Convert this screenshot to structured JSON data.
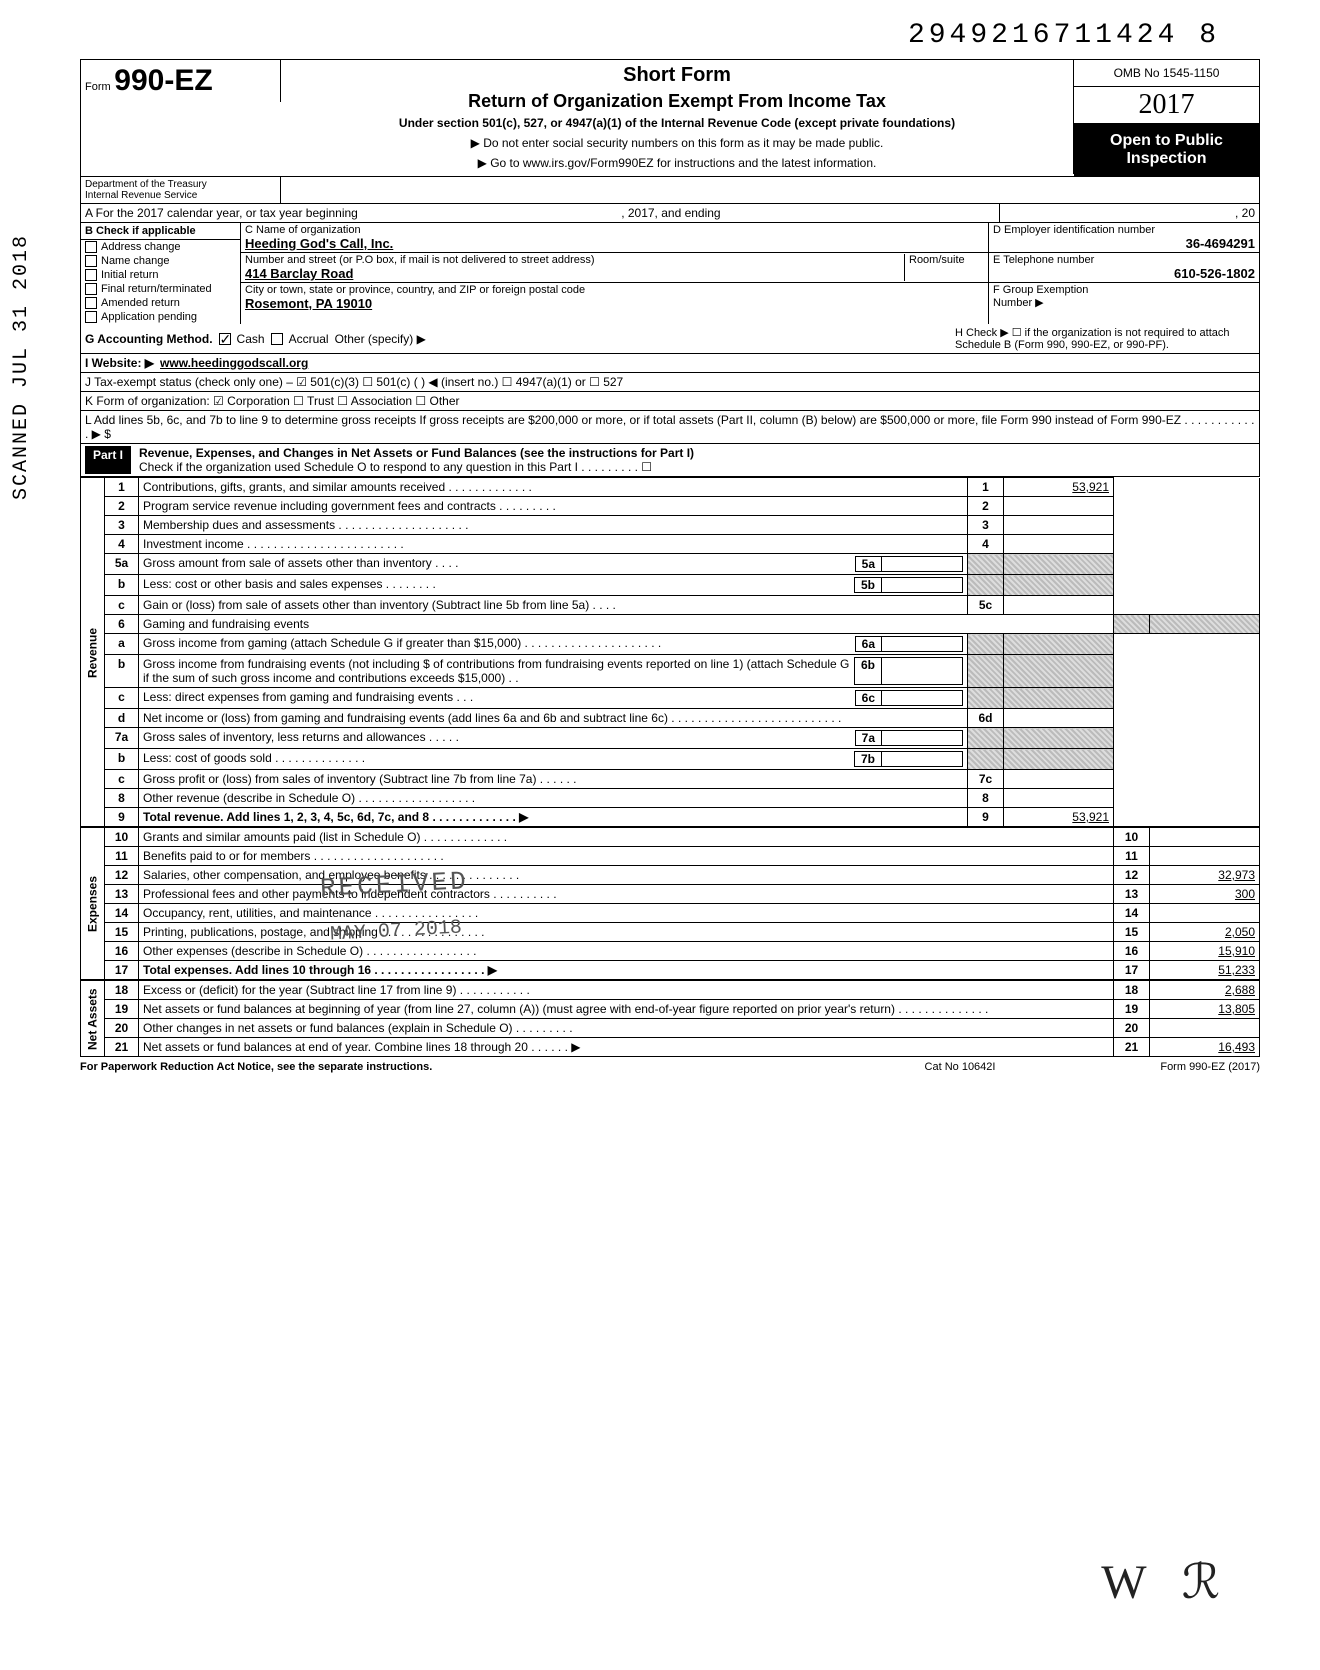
{
  "doc_id": "2949216711424 8",
  "form": {
    "prefix": "Form",
    "num": "990-EZ"
  },
  "header": {
    "short_form": "Short Form",
    "title": "Return of Organization Exempt From Income Tax",
    "subtitle": "Under section 501(c), 527, or 4947(a)(1) of the Internal Revenue Code (except private foundations)",
    "line1": "▶ Do not enter social security numbers on this form as it may be made public.",
    "line2": "▶ Go to www.irs.gov/Form990EZ for instructions and the latest information.",
    "omb": "OMB No 1545-1150",
    "year": "2017",
    "open": "Open to Public Inspection"
  },
  "dept": {
    "l1": "Department of the Treasury",
    "l2": "Internal Revenue Service"
  },
  "rowA": {
    "left": "A For the 2017 calendar year, or tax year beginning",
    "mid": ", 2017, and ending",
    "right": ", 20"
  },
  "B": {
    "hdr": "B Check if applicable",
    "items": [
      "Address change",
      "Name change",
      "Initial return",
      "Final return/terminated",
      "Amended return",
      "Application pending"
    ]
  },
  "C": {
    "name_lbl": "C Name of organization",
    "name": "Heeding God's Call, Inc.",
    "street_lbl": "Number and street (or P.O box, if mail is not delivered to street address)",
    "street": "414 Barclay Road",
    "city_lbl": "City or town, state or province, country, and ZIP or foreign postal code",
    "city": "Rosemont, PA 19010",
    "room": "Room/suite"
  },
  "D": {
    "lbl": "D Employer identification number",
    "val": "36-4694291"
  },
  "E": {
    "lbl": "E Telephone number",
    "val": "610-526-1802"
  },
  "F": {
    "lbl": "F Group Exemption",
    "num": "Number ▶"
  },
  "G": {
    "lbl": "G Accounting Method.",
    "cash": "Cash",
    "accrual": "Accrual",
    "other": "Other (specify) ▶"
  },
  "H": {
    "text": "H Check ▶ ☐ if the organization is not required to attach Schedule B (Form 990, 990-EZ, or 990-PF)."
  },
  "I": {
    "lbl": "I Website: ▶",
    "val": "www.heedinggodscall.org"
  },
  "J": {
    "text": "J Tax-exempt status (check only one) – ☑ 501(c)(3)   ☐ 501(c) (      ) ◀ (insert no.) ☐ 4947(a)(1) or   ☐ 527"
  },
  "K": {
    "text": "K Form of organization:  ☑ Corporation     ☐ Trust          ☐ Association     ☐ Other"
  },
  "L": {
    "text": "L Add lines 5b, 6c, and 7b to line 9 to determine gross receipts If gross receipts are $200,000 or more, or if total assets (Part II, column (B) below) are $500,000 or more, file Form 990 instead of Form 990-EZ . . . . . . . . . . . . ▶  $"
  },
  "part1": {
    "label": "Part I",
    "title": "Revenue, Expenses, and Changes in Net Assets or Fund Balances (see the instructions for Part I)",
    "check": "Check if the organization used Schedule O to respond to any question in this Part I . . . . . . . . . ☐"
  },
  "sections": {
    "rev": "Revenue",
    "exp": "Expenses",
    "na": "Net Assets"
  },
  "lines": [
    {
      "n": "1",
      "d": "Contributions, gifts, grants, and similar amounts received . . . . . . . . . . . . .",
      "b": "1",
      "a": "53,921"
    },
    {
      "n": "2",
      "d": "Program service revenue including government fees and contracts  . . . . . . . . .",
      "b": "2",
      "a": ""
    },
    {
      "n": "3",
      "d": "Membership dues and assessments . . . . . . . . . . . . . . . . . . . .",
      "b": "3",
      "a": ""
    },
    {
      "n": "4",
      "d": "Investment income   . . . . . . . . . . . . . . . . . . . . . . . .",
      "b": "4",
      "a": ""
    },
    {
      "n": "5a",
      "d": "Gross amount from sale of assets other than inventory   . . . .",
      "ib": "5a",
      "shade": true
    },
    {
      "n": "b",
      "d": "Less: cost or other basis and sales expenses . . . . . . . .",
      "ib": "5b",
      "shade": true
    },
    {
      "n": "c",
      "d": "Gain or (loss) from sale of assets other than inventory (Subtract line 5b from line 5a) . . . .",
      "b": "5c",
      "a": ""
    },
    {
      "n": "6",
      "d": "Gaming and fundraising events",
      "shade": true,
      "noboxes": true
    },
    {
      "n": "a",
      "d": "Gross income from gaming (attach Schedule G if greater than $15,000) . . . . . . . . . . . . . . . . . . . . .",
      "ib": "6a",
      "shade": true
    },
    {
      "n": "b",
      "d": "Gross income from fundraising events (not including $                of contributions from fundraising events reported on line 1) (attach Schedule G if the sum of such gross income and contributions exceeds $15,000) . .",
      "ib": "6b",
      "shade": true
    },
    {
      "n": "c",
      "d": "Less: direct expenses from gaming and fundraising events   . . .",
      "ib": "6c",
      "shade": true
    },
    {
      "n": "d",
      "d": "Net income or (loss) from gaming and fundraising events (add lines 6a and 6b and subtract line 6c)  . . . . . . . . . . . . . . . . . . . . . . . . . .",
      "b": "6d",
      "a": ""
    },
    {
      "n": "7a",
      "d": "Gross sales of inventory, less returns and allowances  . . . . .",
      "ib": "7a",
      "shade": true
    },
    {
      "n": "b",
      "d": "Less: cost of goods sold  . . . . . . . . . . . . . .",
      "ib": "7b",
      "shade": true
    },
    {
      "n": "c",
      "d": "Gross profit or (loss) from sales of inventory (Subtract line 7b from line 7a)  . . . . . .",
      "b": "7c",
      "a": ""
    },
    {
      "n": "8",
      "d": "Other revenue (describe in Schedule O) . . . . . . . . . . . . . . . . . .",
      "b": "8",
      "a": ""
    },
    {
      "n": "9",
      "d": "Total revenue. Add lines 1, 2, 3, 4, 5c, 6d, 7c, and 8  . . . . . . . . . . . . . ▶",
      "b": "9",
      "a": "53,921",
      "bold": true
    }
  ],
  "exp_lines": [
    {
      "n": "10",
      "d": "Grants and similar amounts paid (list in Schedule O)  . . . . . . . . . . . . .",
      "b": "10",
      "a": ""
    },
    {
      "n": "11",
      "d": "Benefits paid to or for members  . . . . . . . . . . . . . . . . . . . .",
      "b": "11",
      "a": ""
    },
    {
      "n": "12",
      "d": "Salaries, other compensation, and employee benefits . . . . . . . . . . . . . .",
      "b": "12",
      "a": "32,973"
    },
    {
      "n": "13",
      "d": "Professional fees and other payments to independent contractors . . . . . . . . . .",
      "b": "13",
      "a": "300"
    },
    {
      "n": "14",
      "d": "Occupancy, rent, utilities, and maintenance  . . . . . . . . . . . . . . . .",
      "b": "14",
      "a": ""
    },
    {
      "n": "15",
      "d": "Printing, publications, postage, and shipping . . . . . . . . . . . . . . . .",
      "b": "15",
      "a": "2,050"
    },
    {
      "n": "16",
      "d": "Other expenses (describe in Schedule O) . . . . . . . . . . . . . . . . .",
      "b": "16",
      "a": "15,910"
    },
    {
      "n": "17",
      "d": "Total expenses. Add lines 10 through 16 . . . . . . . . . . . . . . . . . ▶",
      "b": "17",
      "a": "51,233",
      "bold": true
    }
  ],
  "na_lines": [
    {
      "n": "18",
      "d": "Excess or (deficit) for the year (Subtract line 17 from line 9)  . . . . . . . . . . .",
      "b": "18",
      "a": "2,688"
    },
    {
      "n": "19",
      "d": "Net assets or fund balances at beginning of year (from line 27, column (A)) (must agree with end-of-year figure reported on prior year's return)   . . . . . . . . . . . . . .",
      "b": "19",
      "a": "13,805"
    },
    {
      "n": "20",
      "d": "Other changes in net assets or fund balances (explain in Schedule O) . . . . . . . . .",
      "b": "20",
      "a": ""
    },
    {
      "n": "21",
      "d": "Net assets or fund balances at end of year. Combine lines 18 through 20   . . . . . . ▶",
      "b": "21",
      "a": "16,493"
    }
  ],
  "stamps": {
    "received": "RECEIVED",
    "date": "MAY 07 2018",
    "scanned": "SCANNED JUL 31 2018"
  },
  "footer": {
    "l": "For Paperwork Reduction Act Notice, see the separate instructions.",
    "m": "Cat No 10642I",
    "r": "Form 990-EZ (2017)"
  }
}
